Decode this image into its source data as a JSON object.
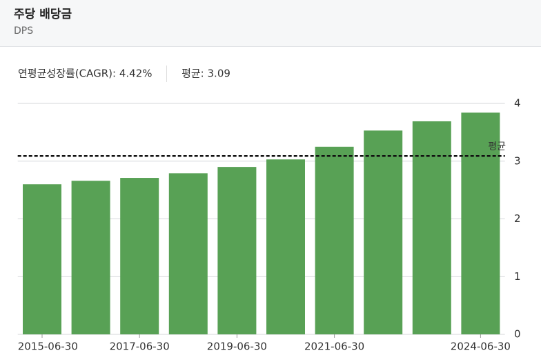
{
  "header": {
    "title": "주당 배당금",
    "subtitle": "DPS"
  },
  "chart_data": {
    "type": "bar",
    "cagr_stat_label": "연평균성장률(CAGR):",
    "cagr": 4.42,
    "cagr_label": "4.42%",
    "average_stat_label": "평균:",
    "average": 3.09,
    "average_label": "평균",
    "categories": [
      "2015-06-30",
      null,
      "2017-06-30",
      null,
      "2019-06-30",
      null,
      "2021-06-30",
      null,
      null,
      "2024-06-30"
    ],
    "values": [
      2.6,
      2.66,
      2.71,
      2.79,
      2.9,
      3.03,
      3.25,
      3.53,
      3.69,
      3.84
    ],
    "color": "#58a155",
    "ylim": [
      0,
      4
    ],
    "yticks": [
      0,
      1,
      2,
      3,
      4
    ],
    "grid": true
  }
}
